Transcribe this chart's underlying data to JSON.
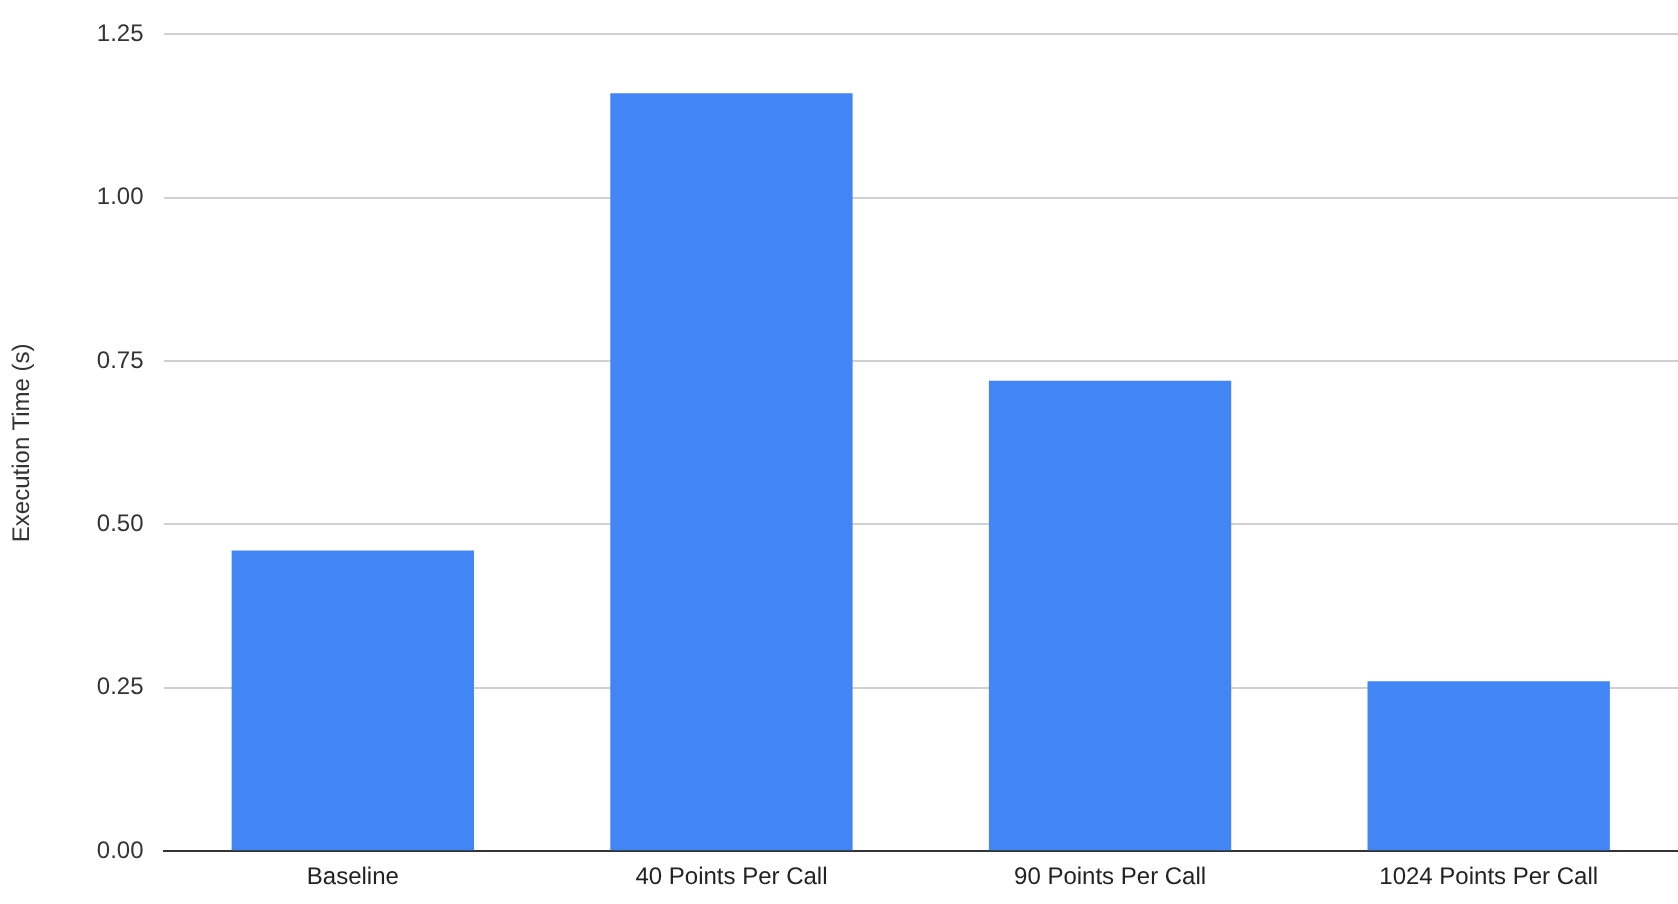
{
  "chart_data": {
    "type": "bar",
    "ylabel": "Execution Time (s)",
    "categories": [
      "Baseline",
      "40 Points Per Call",
      "90 Points Per Call",
      "1024 Points Per Call"
    ],
    "values": [
      0.46,
      1.16,
      0.72,
      0.26
    ],
    "color": "#4285f4",
    "ylim": [
      0,
      1.25
    ],
    "yticks": [
      {
        "value": 0,
        "label": "0.00"
      },
      {
        "value": 0.25,
        "label": "0.25"
      },
      {
        "value": 0.5,
        "label": "0.50"
      },
      {
        "value": 0.75,
        "label": "0.75"
      },
      {
        "value": 1,
        "label": "1.00"
      },
      {
        "value": 1.25,
        "label": "1.25"
      }
    ],
    "grid": "y"
  }
}
